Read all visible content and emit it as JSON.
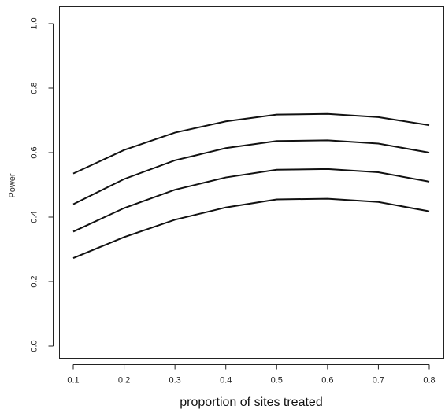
{
  "chart_data": {
    "type": "line",
    "xlabel": "proportion of sites treated",
    "ylabel": "Power",
    "xlim": [
      0.1,
      0.8
    ],
    "ylim": [
      0.0,
      1.0
    ],
    "x_ticks": [
      "0.1",
      "0.2",
      "0.3",
      "0.4",
      "0.5",
      "0.6",
      "0.7",
      "0.8"
    ],
    "y_ticks": [
      "0.0",
      "0.2",
      "0.4",
      "0.6",
      "0.8",
      "1.0"
    ],
    "grid": false,
    "x": [
      0.1,
      0.2,
      0.3,
      0.4,
      0.5,
      0.6,
      0.7,
      0.8
    ],
    "series": [
      {
        "values": [
          0.535,
          0.608,
          0.662,
          0.697,
          0.718,
          0.72,
          0.71,
          0.685
        ]
      },
      {
        "values": [
          0.44,
          0.518,
          0.576,
          0.614,
          0.636,
          0.638,
          0.628,
          0.6
        ]
      },
      {
        "values": [
          0.355,
          0.428,
          0.485,
          0.523,
          0.547,
          0.549,
          0.539,
          0.51
        ]
      },
      {
        "values": [
          0.273,
          0.338,
          0.392,
          0.43,
          0.455,
          0.457,
          0.447,
          0.418
        ]
      }
    ],
    "line_color": "#111111"
  }
}
